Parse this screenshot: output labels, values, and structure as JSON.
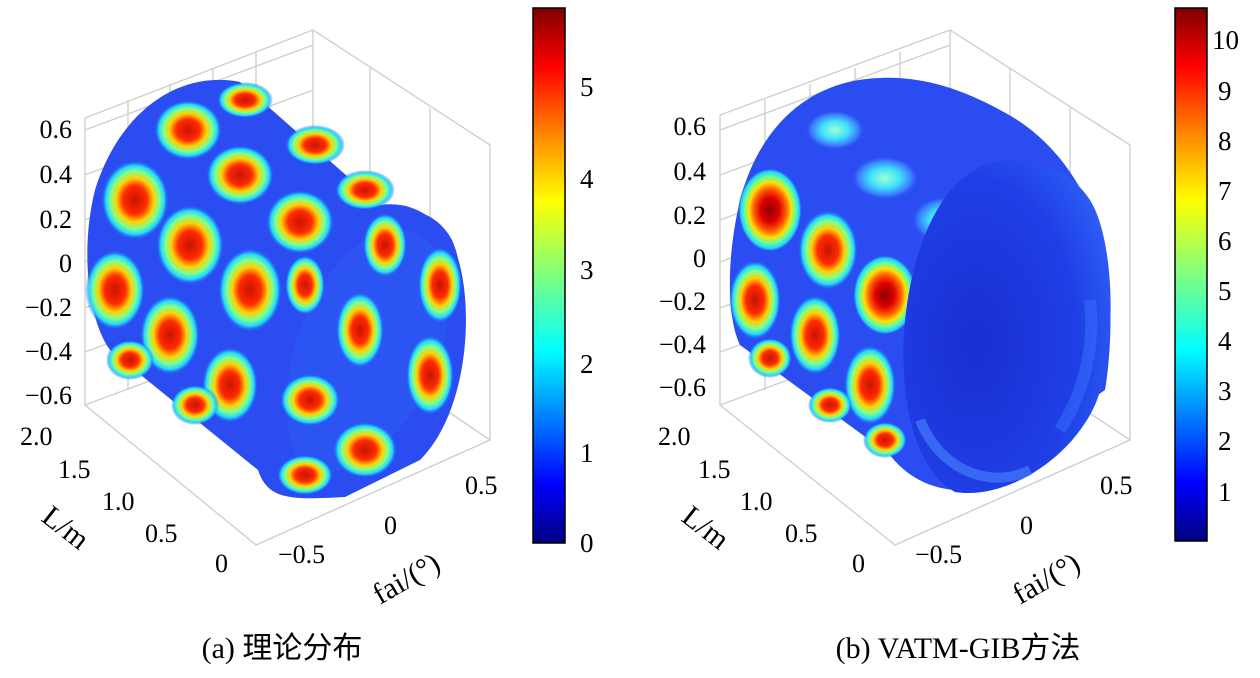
{
  "figure": {
    "panels": [
      {
        "caption": "(a) 理论分布",
        "y_label": "",
        "l_label": "L/m",
        "fai_label": "fai/(°)",
        "y_ticks": [
          "0.6",
          "0.4",
          "0.2",
          "0",
          "−0.2",
          "−0.4",
          "−0.6"
        ],
        "l_ticks": [
          "2.0",
          "1.5",
          "1.0",
          "0.5",
          "0"
        ],
        "fai_ticks": [
          "−0.5",
          "0",
          "0.5"
        ],
        "colorbar_ticks": [
          "0",
          "1",
          "2",
          "3",
          "4",
          "5"
        ]
      },
      {
        "caption": "(b) VATM-GIB方法",
        "y_label": "",
        "l_label": "L/m",
        "fai_label": "fai/(°)",
        "y_ticks": [
          "0.6",
          "0.4",
          "0.2",
          "0",
          "−0.2",
          "−0.4",
          "−0.6"
        ],
        "l_ticks": [
          "2.0",
          "1.5",
          "1.0",
          "0.5",
          "0"
        ],
        "fai_ticks": [
          "−0.5",
          "0",
          "0.5"
        ],
        "colorbar_ticks": [
          "1",
          "2",
          "3",
          "4",
          "5",
          "6",
          "7",
          "8",
          "9",
          "10"
        ]
      }
    ]
  },
  "colors": {
    "jet": [
      "#00007f",
      "#0000ff",
      "#007fff",
      "#00ffff",
      "#7fff7f",
      "#ffff00",
      "#ff7f00",
      "#ff0000",
      "#7f0000"
    ],
    "surface_base": "#1f3fe0",
    "grid": "#cfcfcf"
  },
  "chart_data": [
    {
      "type": "surface3d-cylinder",
      "title": "(a) 理论分布",
      "axes": {
        "y": [
          -0.6,
          0.6
        ],
        "L": [
          0,
          2.0
        ],
        "fai": [
          -0.5,
          0.5
        ]
      },
      "xlabel": "fai/(°)",
      "zlabel": "L/m",
      "colorbar": {
        "min": 0,
        "max": 5.8,
        "ticks": [
          0,
          1,
          2,
          3,
          4,
          5
        ],
        "colormap": "jet"
      },
      "pattern": {
        "rings_along_L": 4,
        "peaks_per_ring": 8,
        "peak_value": 5.5,
        "trough_value": 0.8
      }
    },
    {
      "type": "surface3d-cylinder",
      "title": "(b) VATM-GIB方法",
      "axes": {
        "y": [
          -0.6,
          0.6
        ],
        "L": [
          0,
          2.0
        ],
        "fai": [
          -0.5,
          0.5
        ]
      },
      "xlabel": "fai/(°)",
      "zlabel": "L/m",
      "colorbar": {
        "min": 0,
        "max": 10.6,
        "ticks": [
          1,
          2,
          3,
          4,
          5,
          6,
          7,
          8,
          9,
          10
        ],
        "colormap": "jet"
      },
      "pattern": {
        "rings_along_L": 3,
        "peaks_per_ring": 8,
        "peak_value": 10.2,
        "trough_value": 0.6,
        "interior_value": 0.2
      }
    }
  ]
}
